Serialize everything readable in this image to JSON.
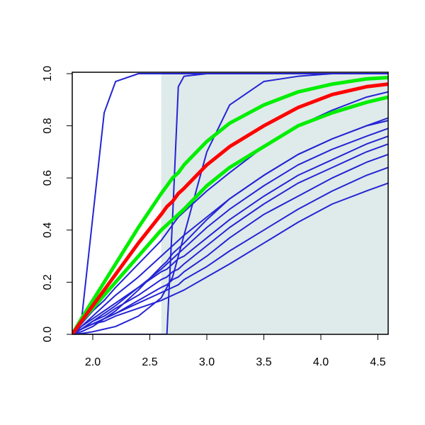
{
  "chart_data": {
    "type": "line",
    "x": [
      1.82,
      1.9,
      2.0,
      2.1,
      2.2,
      2.4,
      2.6,
      2.65,
      2.7,
      2.75,
      2.8,
      3.0,
      3.2,
      3.5,
      3.8,
      4.1,
      4.4,
      4.59
    ],
    "xlim": [
      1.82,
      4.59
    ],
    "ylim": [
      0,
      1
    ],
    "xticks": [
      {
        "value": 2.0,
        "label": "2.0"
      },
      {
        "value": 2.5,
        "label": "2.5"
      },
      {
        "value": 3.0,
        "label": "3.0"
      },
      {
        "value": 3.5,
        "label": "3.5"
      },
      {
        "value": 4.0,
        "label": "4.0"
      },
      {
        "value": 4.5,
        "label": "4.5"
      }
    ],
    "yticks": [
      {
        "value": 0,
        "label": "0.0"
      },
      0.2,
      0.4,
      0.6,
      0.8,
      {
        "value": 1,
        "label": "1.0"
      }
    ],
    "shaded_region": [
      2.6,
      4.59
    ],
    "shade_color": "#dfeaea",
    "series": [
      {
        "color": "#2424d4",
        "line_width": 2,
        "values": [
          0,
          0.05,
          0.45,
          0.85,
          0.97,
          1,
          1,
          1,
          1,
          1,
          1,
          1,
          1,
          1,
          1,
          1,
          1,
          1
        ]
      },
      {
        "color": "#2424d4",
        "line_width": 2,
        "values": [
          0,
          0,
          0,
          0,
          0,
          0,
          0,
          0,
          0.45,
          0.95,
          0.99,
          1,
          1,
          1,
          1,
          1,
          1,
          1
        ]
      },
      {
        "color": "#2424d4",
        "line_width": 2,
        "values": [
          0,
          0.003,
          0.01,
          0.02,
          0.03,
          0.07,
          0.14,
          0.18,
          0.22,
          0.3,
          0.38,
          0.7,
          0.88,
          0.97,
          0.99,
          1,
          1,
          1
        ]
      },
      {
        "color": "#2424d4",
        "line_width": 2,
        "values": [
          0,
          0.04,
          0.09,
          0.13,
          0.18,
          0.27,
          0.36,
          0.39,
          0.42,
          0.45,
          0.47,
          0.55,
          0.62,
          0.72,
          0.8,
          0.86,
          0.91,
          0.93
        ]
      },
      {
        "color": "#2424d4",
        "line_width": 2,
        "values": [
          0,
          0.03,
          0.07,
          0.11,
          0.15,
          0.22,
          0.3,
          0.32,
          0.34,
          0.36,
          0.38,
          0.45,
          0.52,
          0.61,
          0.69,
          0.75,
          0.8,
          0.83
        ]
      },
      {
        "color": "#2424d4",
        "line_width": 2,
        "values": [
          0,
          0.01,
          0.03,
          0.06,
          0.09,
          0.17,
          0.26,
          0.28,
          0.31,
          0.33,
          0.35,
          0.44,
          0.52,
          0.61,
          0.69,
          0.75,
          0.8,
          0.82
        ]
      },
      {
        "color": "#2424d4",
        "line_width": 2,
        "values": [
          0,
          0.02,
          0.05,
          0.08,
          0.11,
          0.18,
          0.25,
          0.27,
          0.29,
          0.31,
          0.33,
          0.41,
          0.48,
          0.57,
          0.65,
          0.71,
          0.76,
          0.79
        ]
      },
      {
        "color": "#2424d4",
        "line_width": 2,
        "values": [
          0,
          0.03,
          0.06,
          0.09,
          0.12,
          0.18,
          0.24,
          0.25,
          0.27,
          0.29,
          0.3,
          0.37,
          0.44,
          0.53,
          0.61,
          0.67,
          0.73,
          0.76
        ]
      },
      {
        "color": "#2424d4",
        "line_width": 2,
        "values": [
          0,
          0.02,
          0.05,
          0.07,
          0.1,
          0.15,
          0.21,
          0.22,
          0.24,
          0.25,
          0.27,
          0.34,
          0.41,
          0.5,
          0.58,
          0.64,
          0.7,
          0.73
        ]
      },
      {
        "color": "#2424d4",
        "line_width": 2,
        "values": [
          0,
          0.02,
          0.04,
          0.06,
          0.08,
          0.13,
          0.18,
          0.19,
          0.21,
          0.22,
          0.24,
          0.3,
          0.37,
          0.46,
          0.53,
          0.6,
          0.66,
          0.69
        ]
      },
      {
        "color": "#2424d4",
        "line_width": 2,
        "values": [
          0,
          0.02,
          0.04,
          0.06,
          0.08,
          0.12,
          0.16,
          0.17,
          0.18,
          0.19,
          0.21,
          0.26,
          0.32,
          0.4,
          0.48,
          0.55,
          0.61,
          0.64
        ]
      },
      {
        "color": "#2424d4",
        "line_width": 2,
        "values": [
          0,
          0.02,
          0.04,
          0.05,
          0.07,
          0.1,
          0.13,
          0.14,
          0.15,
          0.16,
          0.17,
          0.22,
          0.27,
          0.35,
          0.43,
          0.5,
          0.55,
          0.58
        ]
      },
      {
        "color": "#00ee00",
        "line_width": 5,
        "values": [
          0,
          0.06,
          0.13,
          0.2,
          0.27,
          0.41,
          0.54,
          0.57,
          0.6,
          0.62,
          0.65,
          0.74,
          0.81,
          0.88,
          0.93,
          0.96,
          0.98,
          0.985
        ]
      },
      {
        "color": "#00ee00",
        "line_width": 5,
        "values": [
          0,
          0.05,
          0.1,
          0.15,
          0.2,
          0.3,
          0.4,
          0.42,
          0.44,
          0.46,
          0.48,
          0.57,
          0.64,
          0.72,
          0.8,
          0.85,
          0.89,
          0.91
        ]
      },
      {
        "color": "#ff0000",
        "line_width": 5,
        "values": [
          0,
          0.05,
          0.11,
          0.17,
          0.23,
          0.35,
          0.46,
          0.49,
          0.51,
          0.54,
          0.56,
          0.65,
          0.72,
          0.8,
          0.87,
          0.92,
          0.95,
          0.96
        ]
      }
    ]
  }
}
